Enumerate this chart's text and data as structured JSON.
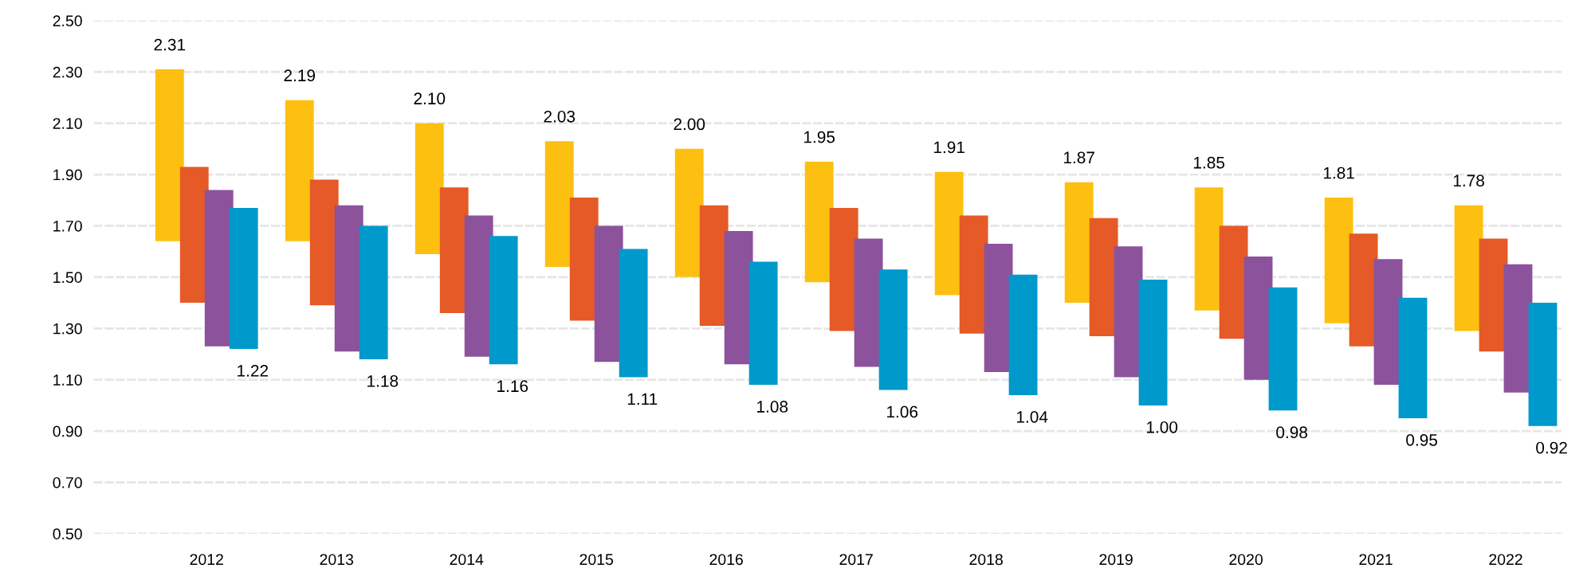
{
  "chart_data": {
    "type": "bar",
    "categories": [
      "2012",
      "2013",
      "2014",
      "2015",
      "2016",
      "2017",
      "2018",
      "2019",
      "2020",
      "2021",
      "2022"
    ],
    "series": [
      {
        "color": "#fdc010",
        "base": [
          1.64,
          1.64,
          1.59,
          1.54,
          1.5,
          1.48,
          1.43,
          1.4,
          1.37,
          1.32,
          1.29
        ],
        "values": [
          0.67,
          0.55,
          0.51,
          0.49,
          0.5,
          0.47,
          0.48,
          0.47,
          0.48,
          0.49,
          0.49
        ],
        "value_labels": [
          "2.31",
          "2.19",
          "2.10",
          "2.03",
          "2.00",
          "1.95",
          "1.91",
          "1.87",
          "1.85",
          "1.81",
          "1.78"
        ]
      },
      {
        "color": "#e55a26",
        "base": [
          1.4,
          1.39,
          1.36,
          1.33,
          1.31,
          1.29,
          1.28,
          1.27,
          1.26,
          1.23,
          1.21
        ],
        "values": [
          0.53,
          0.49,
          0.49,
          0.48,
          0.47,
          0.48,
          0.46,
          0.46,
          0.44,
          0.44,
          0.44
        ]
      },
      {
        "color": "#8c529c",
        "base": [
          1.23,
          1.21,
          1.19,
          1.17,
          1.16,
          1.15,
          1.13,
          1.11,
          1.1,
          1.08,
          1.05
        ],
        "values": [
          0.61,
          0.57,
          0.55,
          0.53,
          0.52,
          0.5,
          0.5,
          0.51,
          0.48,
          0.49,
          0.5
        ]
      },
      {
        "color": "#0099cc",
        "base": [
          1.22,
          1.18,
          1.16,
          1.11,
          1.08,
          1.06,
          1.04,
          1.0,
          0.98,
          0.95,
          0.92
        ],
        "values": [
          0.55,
          0.52,
          0.5,
          0.5,
          0.48,
          0.47,
          0.47,
          0.49,
          0.48,
          0.47,
          0.48
        ]
      }
    ],
    "annotations": [
      "1.22",
      "1.18",
      "1.16",
      "1.11",
      "1.08",
      "1.06",
      "1.04",
      "1.00",
      "0.98",
      "0.95",
      "0.92"
    ],
    "ylim": [
      0.5,
      2.5
    ],
    "yticks": [
      {
        "value": 0.5,
        "label": "0.50"
      },
      {
        "value": 0.7,
        "label": "0.70"
      },
      {
        "value": 0.9,
        "label": "0.90"
      },
      {
        "value": 1.1,
        "label": "1.10"
      },
      {
        "value": 1.3,
        "label": "1.30"
      },
      {
        "value": 1.5,
        "label": "1.50"
      },
      {
        "value": 1.7,
        "label": "1.70"
      },
      {
        "value": 1.9,
        "label": "1.90"
      },
      {
        "value": 2.1,
        "label": "2.10"
      },
      {
        "value": 2.3,
        "label": "2.30"
      },
      {
        "value": 2.5,
        "label": "2.50"
      }
    ],
    "grid": "y"
  }
}
